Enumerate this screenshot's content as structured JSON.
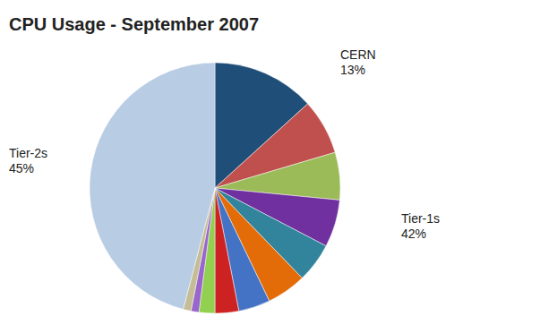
{
  "chart_data": {
    "type": "pie",
    "title": "CPU Usage - September 2007",
    "values": [
      13,
      7,
      6,
      6,
      5,
      5,
      4,
      3,
      2,
      1,
      1,
      45
    ],
    "colors": [
      "#1f4e79",
      "#c0504d",
      "#9bbb59",
      "#7030a0",
      "#31849b",
      "#e36c09",
      "#4472c4",
      "#cc2222",
      "#92d050",
      "#9966cc",
      "#c4bd97",
      "#b8cce4"
    ],
    "annotations": [
      "CERN\n13%",
      "Tier-1s\n42%",
      "Tier-2s\n45%"
    ]
  }
}
